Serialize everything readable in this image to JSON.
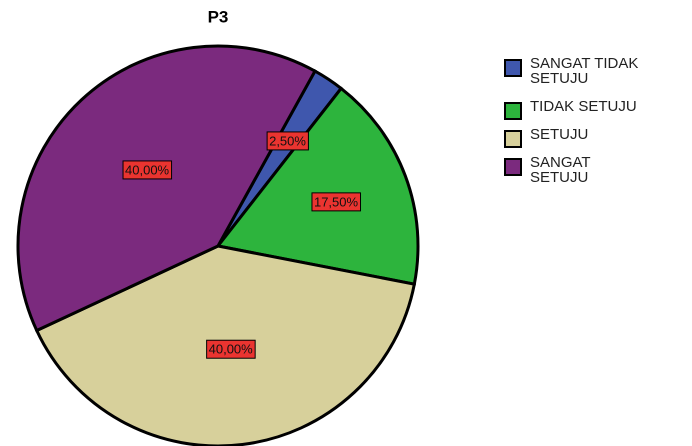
{
  "chart_data": {
    "type": "pie",
    "title": "P3",
    "categories": [
      "SANGAT TIDAK SETUJU",
      "TIDAK SETUJU",
      "SETUJU",
      "SANGAT SETUJU"
    ],
    "values": [
      2.5,
      17.5,
      40,
      40
    ],
    "value_labels": [
      "2,50%",
      "17,50%",
      "40,00%",
      "40,00%"
    ],
    "colors": [
      "#3f57ad",
      "#2db43d",
      "#d7d09b",
      "#7b2a7e"
    ]
  }
}
